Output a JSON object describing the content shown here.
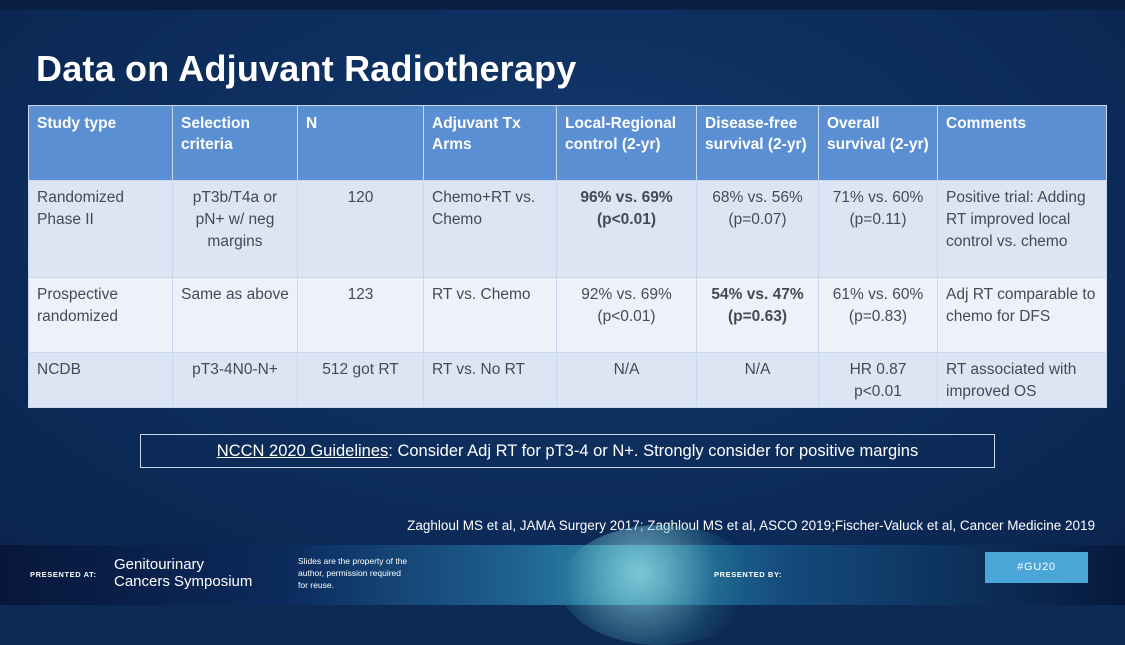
{
  "slide": {
    "title": "Data on Adjuvant Radiotherapy",
    "table": {
      "headers": [
        "Study type",
        "Selection criteria",
        "N",
        "Adjuvant Tx Arms",
        "Local-Regional control (2-yr)",
        "Disease-free survival (2-yr)",
        "Overall survival (2-yr)",
        "Comments"
      ],
      "rows": [
        [
          "Randomized Phase II",
          "pT3b/T4a or pN+ w/ neg margins",
          "120",
          "Chemo+RT vs. Chemo",
          "96% vs. 69% (p<0.01)",
          "68% vs. 56% (p=0.07)",
          "71% vs. 60% (p=0.11)",
          "Positive trial: Adding RT improved local control vs. chemo"
        ],
        [
          "Prospective randomized",
          "Same as above",
          "123",
          "RT vs. Chemo",
          "92% vs. 69% (p<0.01)",
          "54% vs. 47% (p=0.63)",
          "61% vs. 60% (p=0.83)",
          "Adj RT comparable to chemo for DFS"
        ],
        [
          "NCDB",
          "pT3-4N0-N+",
          "512 got RT",
          "RT vs. No RT",
          "N/A",
          "N/A",
          "HR 0.87 p<0.01",
          "RT associated with improved OS"
        ]
      ]
    },
    "guideline": {
      "label": "NCCN 2020 Guidelines",
      "text": ":  Consider Adj RT for pT3-4 or N+.  Strongly consider for positive margins"
    },
    "citation": "Zaghloul MS et al, JAMA Surgery 2017; Zaghloul MS et al, ASCO 2019;Fischer-Valuck et al, Cancer Medicine 2019"
  },
  "footer": {
    "presented_at": "PRESENTED AT:",
    "symposium_line1": "Genitourinary",
    "symposium_line2": "Cancers Symposium",
    "rights": "Slides are the property of the author, permission required for reuse.",
    "presented_by": "PRESENTED BY:",
    "hashtag": "#GU20"
  }
}
